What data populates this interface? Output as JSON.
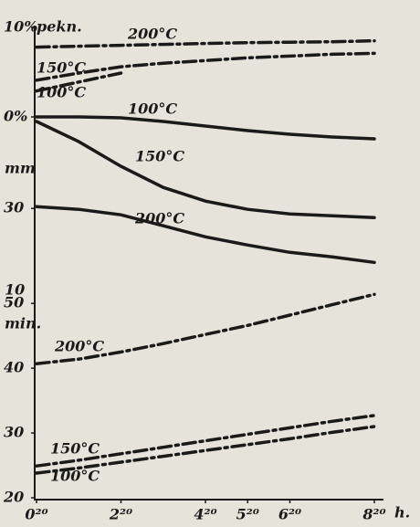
{
  "chart_data": [
    {
      "type": "line",
      "line_style": "dashdot",
      "ylabel": "pekn.",
      "x": [
        0.33,
        1.33,
        2.33,
        3.33,
        4.33,
        5.33,
        6.33,
        7.33,
        8.33
      ],
      "xlim": [
        0.33,
        8.33
      ],
      "ylim": [
        0,
        10
      ],
      "yticks": [
        {
          "value": 10,
          "label": "10%"
        },
        {
          "value": 0,
          "label": "0%"
        }
      ],
      "series": [
        {
          "name": "200°C",
          "color": "#1a1a1a",
          "values": [
            7.8,
            7.9,
            8.0,
            8.1,
            8.2,
            8.3,
            8.35,
            8.4,
            8.5
          ]
        },
        {
          "name": "150°C",
          "color": "#1a1a1a",
          "values": [
            4.1,
            4.9,
            5.6,
            6.0,
            6.3,
            6.6,
            6.8,
            7.0,
            7.1
          ]
        },
        {
          "name": "100°C",
          "color": "#1a1a1a",
          "values": [
            2.9,
            3.9,
            4.9,
            null,
            null,
            null,
            null,
            null,
            null
          ]
        }
      ]
    },
    {
      "type": "line",
      "line_style": "solid",
      "ylabel": "mm",
      "inverted": true,
      "note": "10",
      "x": [
        0.33,
        1.33,
        2.33,
        3.33,
        4.33,
        5.33,
        6.33,
        7.33,
        8.33
      ],
      "xlim": [
        0.33,
        8.33
      ],
      "ylim": [
        0,
        50
      ],
      "yticks": [
        30
      ],
      "series": [
        {
          "name": "100°C",
          "color": "#1a1a1a",
          "values": [
            0,
            0,
            0.3,
            1.5,
            3,
            4.5,
            5.7,
            6.6,
            7.2
          ]
        },
        {
          "name": "150°C",
          "color": "#1a1a1a",
          "values": [
            1.5,
            8.1,
            16.2,
            23.1,
            27.6,
            30.3,
            31.8,
            32.4,
            33
          ]
        },
        {
          "name": "200°C",
          "color": "#1a1a1a",
          "values": [
            29.4,
            30.3,
            32.1,
            35.7,
            39.3,
            42,
            44.4,
            45.9,
            47.7
          ]
        }
      ]
    },
    {
      "type": "line",
      "line_style": "dashdot",
      "ylabel": "min.",
      "xlabel": "h.",
      "x": [
        0.33,
        1.33,
        2.33,
        3.33,
        4.33,
        5.33,
        6.33,
        7.33,
        8.33
      ],
      "xlim": [
        0.33,
        8.33
      ],
      "ylim": [
        20,
        52
      ],
      "yticks": [
        50,
        40,
        30,
        20
      ],
      "xticks": [
        {
          "value": 0.33,
          "label": "0²⁰"
        },
        {
          "value": 2.33,
          "label": "2²⁰"
        },
        {
          "value": 4.33,
          "label": "4²⁰"
        },
        {
          "value": 5.33,
          "label": "5²⁰"
        },
        {
          "value": 6.33,
          "label": "6²⁰"
        },
        {
          "value": 8.33,
          "label": "8²⁰"
        }
      ],
      "series": [
        {
          "name": "200°C",
          "color": "#1a1a1a",
          "values": [
            40.7,
            41.4,
            42.5,
            43.8,
            45.2,
            46.6,
            48.2,
            49.8,
            51.4
          ]
        },
        {
          "name": "150°C",
          "color": "#1a1a1a",
          "values": [
            24.9,
            25.8,
            26.8,
            27.8,
            28.8,
            29.8,
            30.8,
            31.8,
            32.7
          ]
        },
        {
          "name": "100°C",
          "color": "#1a1a1a",
          "values": [
            23.8,
            24.6,
            25.5,
            26.4,
            27.3,
            28.2,
            29.1,
            30.1,
            31
          ]
        }
      ]
    }
  ]
}
